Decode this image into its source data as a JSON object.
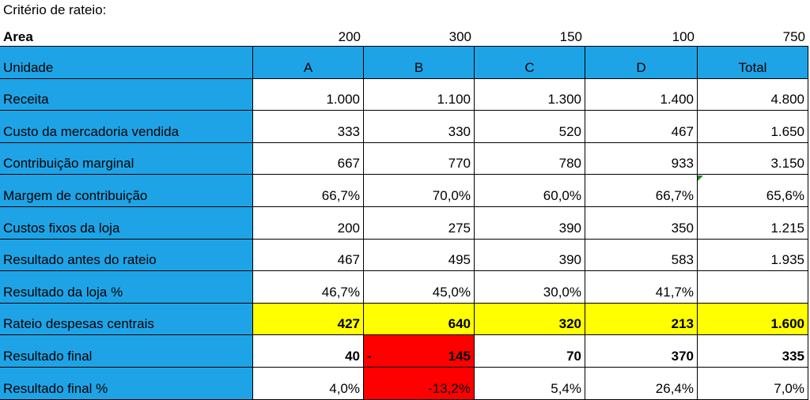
{
  "header": {
    "title": "Critério de rateio:"
  },
  "area": {
    "label": "Area",
    "values": [
      "200",
      "300",
      "150",
      "100",
      "750"
    ]
  },
  "table": {
    "columns": [
      "Unidade",
      "A",
      "B",
      "C",
      "D",
      "Total"
    ],
    "rows": [
      [
        "Receita",
        "1.000",
        "1.100",
        "1.300",
        "1.400",
        "4.800"
      ],
      [
        "Custo da mercadoria vendida",
        "333",
        "330",
        "520",
        "467",
        "1.650"
      ],
      [
        "Contribuição marginal",
        "667",
        "770",
        "780",
        "933",
        "3.150"
      ],
      [
        "Margem de contribuição",
        "66,7%",
        "70,0%",
        "60,0%",
        "66,7%",
        "65,6%"
      ],
      [
        "Custos fixos da loja",
        "200",
        "275",
        "390",
        "350",
        "1.215"
      ],
      [
        "Resultado antes do rateio",
        "467",
        "495",
        "390",
        "583",
        "1.935"
      ],
      [
        "Resultado da loja %",
        "46,7%",
        "45,0%",
        "30,0%",
        "41,7%",
        null
      ],
      [
        "Rateio despesas centrais",
        "427",
        "640",
        "320",
        "213",
        "1.600"
      ],
      [
        "Resultado final",
        "40",
        {
          "sign": "-",
          "text": "145"
        },
        "70",
        "370",
        "335"
      ],
      [
        "Resultado final %",
        "4,0%",
        "-13,2%",
        "5,4%",
        "26,4%",
        "7,0%"
      ]
    ]
  }
}
